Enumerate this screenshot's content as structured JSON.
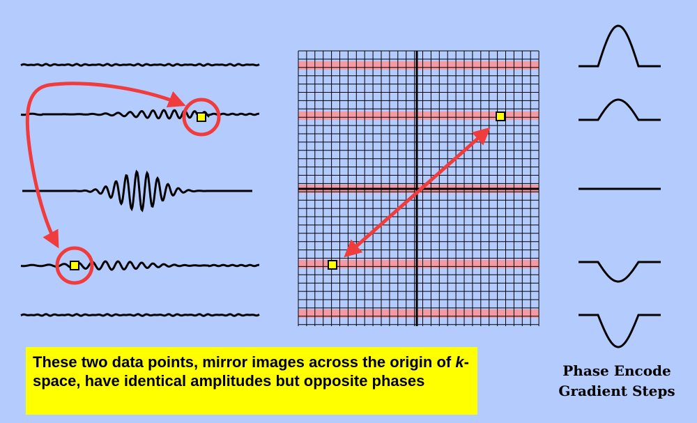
{
  "caption": {
    "before": "These two data points, mirror images across the origin of ",
    "italic": "k",
    "after": "-space, have identical amplitudes but opposite phases"
  },
  "label": [
    "Phase Encode",
    "Gradient Steps"
  ]
}
